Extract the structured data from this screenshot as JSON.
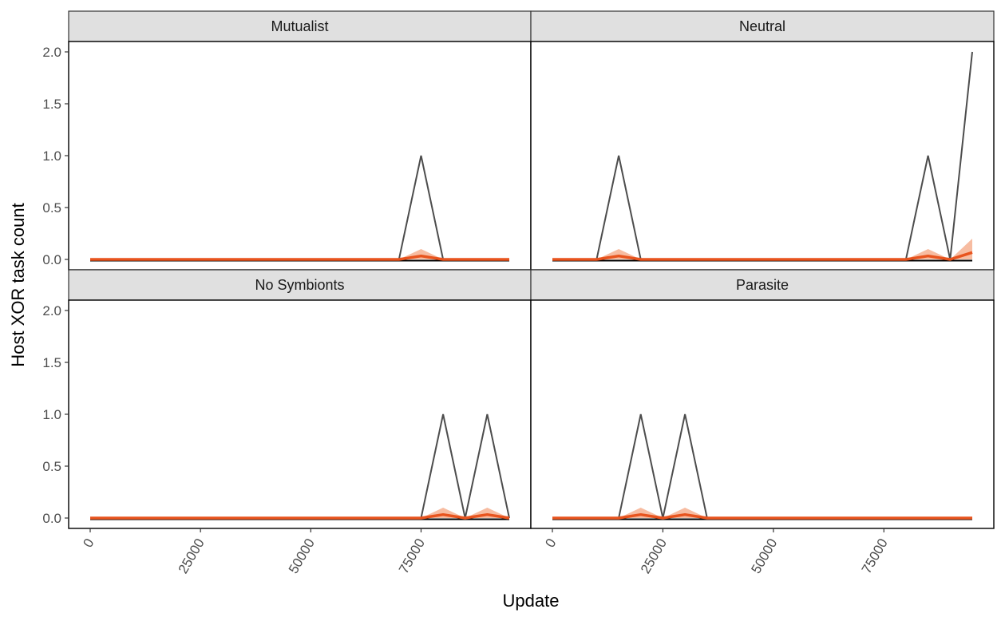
{
  "chart_data": {
    "type": "line",
    "layout": "facet-grid-2x2",
    "xlabel": "Update",
    "ylabel": "Host XOR task count",
    "xlim": [
      0,
      95000
    ],
    "ylim": [
      0,
      2
    ],
    "x_ticks": [
      0,
      25000,
      50000,
      75000
    ],
    "x_tick_labels": [
      "0",
      "25000",
      "50000",
      "75000"
    ],
    "y_ticks": [
      0,
      0.5,
      1,
      1.5,
      2
    ],
    "y_tick_labels": [
      "0.0",
      "0.5",
      "1.0",
      "1.5",
      "2.0"
    ],
    "grid": false,
    "colors": {
      "individual_line": "#4d4d4d",
      "mean_line": "#e8541e",
      "ribbon": "#f4a582",
      "strip_fill": "#e0e0e0",
      "panel_border": "#333333"
    },
    "x": [
      0,
      5000,
      10000,
      15000,
      20000,
      25000,
      30000,
      35000,
      40000,
      45000,
      50000,
      55000,
      60000,
      65000,
      70000,
      75000,
      80000,
      85000,
      90000,
      95000
    ],
    "panels": [
      {
        "name": "Mutualist",
        "individual": [
          0,
          0,
          0,
          0,
          0,
          0,
          0,
          0,
          0,
          0,
          0,
          0,
          0,
          0,
          0,
          1,
          0,
          0,
          0,
          0
        ],
        "mean": [
          0,
          0,
          0,
          0,
          0,
          0,
          0,
          0,
          0,
          0,
          0,
          0,
          0,
          0,
          0,
          0.033,
          0,
          0,
          0,
          0
        ],
        "ribbon_upper": [
          0,
          0,
          0,
          0,
          0,
          0,
          0,
          0,
          0,
          0,
          0,
          0,
          0,
          0,
          0,
          0.1,
          0,
          0,
          0,
          0
        ]
      },
      {
        "name": "Neutral",
        "individual": [
          0,
          0,
          0,
          1,
          0,
          0,
          0,
          0,
          0,
          0,
          0,
          0,
          0,
          0,
          0,
          0,
          0,
          1,
          0,
          2
        ],
        "mean": [
          0,
          0,
          0,
          0.033,
          0,
          0,
          0,
          0,
          0,
          0,
          0,
          0,
          0,
          0,
          0,
          0,
          0,
          0.033,
          0,
          0.067
        ],
        "ribbon_upper": [
          0,
          0,
          0,
          0.1,
          0,
          0,
          0,
          0,
          0,
          0,
          0,
          0,
          0,
          0,
          0,
          0,
          0,
          0.1,
          0,
          0.2
        ]
      },
      {
        "name": "No Symbionts",
        "individual": [
          0,
          0,
          0,
          0,
          0,
          0,
          0,
          0,
          0,
          0,
          0,
          0,
          0,
          0,
          0,
          0,
          1,
          0,
          1,
          0
        ],
        "mean": [
          0,
          0,
          0,
          0,
          0,
          0,
          0,
          0,
          0,
          0,
          0,
          0,
          0,
          0,
          0,
          0,
          0.033,
          0,
          0.033,
          0
        ],
        "ribbon_upper": [
          0,
          0,
          0,
          0,
          0,
          0,
          0,
          0,
          0,
          0,
          0,
          0,
          0,
          0,
          0,
          0,
          0.1,
          0,
          0.1,
          0
        ]
      },
      {
        "name": "Parasite",
        "individual": [
          0,
          0,
          0,
          0,
          1,
          0,
          1,
          0,
          0,
          0,
          0,
          0,
          0,
          0,
          0,
          0,
          0,
          0,
          0,
          0
        ],
        "mean": [
          0,
          0,
          0,
          0,
          0.033,
          0,
          0.033,
          0,
          0,
          0,
          0,
          0,
          0,
          0,
          0,
          0,
          0,
          0,
          0,
          0
        ],
        "ribbon_upper": [
          0,
          0,
          0,
          0,
          0.1,
          0,
          0.1,
          0,
          0,
          0,
          0,
          0,
          0,
          0,
          0,
          0,
          0,
          0,
          0,
          0
        ]
      }
    ]
  }
}
